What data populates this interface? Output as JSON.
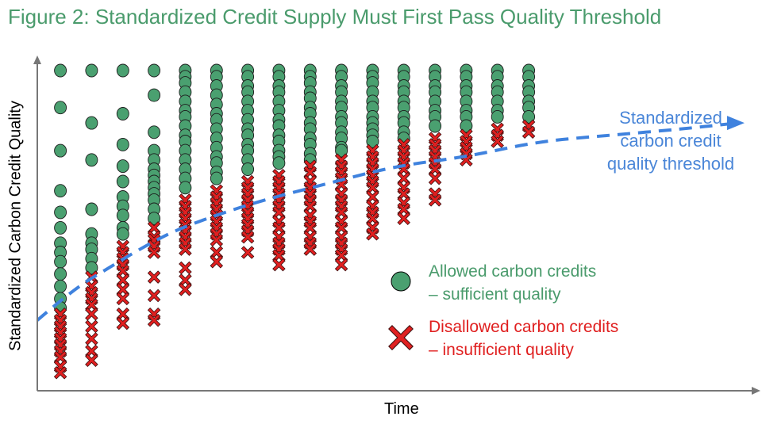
{
  "title": "Figure 2: Standardized Credit Supply Must First Pass Quality Threshold",
  "threshold_label_lines": [
    "Standardized",
    "carbon credit",
    "quality threshold"
  ],
  "legend": {
    "allowed": [
      "Allowed carbon credits",
      "– sufficient quality"
    ],
    "disallowed": [
      "Disallowed carbon credits",
      "– insufficient quality"
    ]
  },
  "colors": {
    "allowed": "#4a9b6c",
    "allowed_fill": "#4aa070",
    "disallowed": "#e02020",
    "threshold": "#3f82de",
    "axis": "#777777",
    "title": "#4a9b6c"
  },
  "chart_data": {
    "type": "scatter",
    "title": "Figure 2: Standardized Credit Supply Must First Pass Quality Threshold",
    "xlabel": "Time",
    "ylabel": "Standardized Carbon Credit Quality",
    "xlim": [
      0,
      1
    ],
    "ylim": [
      0,
      1
    ],
    "grid": false,
    "legend_position": "right",
    "threshold": {
      "name": "Standardized carbon credit quality threshold",
      "x": [
        0.0,
        0.05,
        0.1,
        0.15,
        0.2,
        0.3,
        0.4,
        0.5,
        0.6,
        0.7,
        0.8,
        0.9,
        0.98
      ],
      "y": [
        0.19,
        0.29,
        0.36,
        0.43,
        0.49,
        0.57,
        0.63,
        0.69,
        0.72,
        0.77,
        0.79,
        0.81,
        0.83
      ]
    },
    "columns": [
      {
        "x": 0.03,
        "allowed": [
          1.0,
          0.88,
          0.74,
          0.61,
          0.54,
          0.49,
          0.44,
          0.41,
          0.38,
          0.34,
          0.3,
          0.26,
          0.23
        ],
        "disallowed": [
          0.21,
          0.19,
          0.17,
          0.15,
          0.13,
          0.11,
          0.09,
          0.07,
          0.04,
          0.02
        ]
      },
      {
        "x": 0.12,
        "allowed": [
          1.0,
          0.83,
          0.71,
          0.55,
          0.47,
          0.44,
          0.42,
          0.39,
          0.36
        ],
        "disallowed": [
          0.33,
          0.3,
          0.28,
          0.26,
          0.24,
          0.21,
          0.17,
          0.13,
          0.09,
          0.06
        ]
      },
      {
        "x": 0.21,
        "allowed": [
          1.0,
          0.86,
          0.76,
          0.69,
          0.64,
          0.59,
          0.56,
          0.53,
          0.49,
          0.47
        ],
        "disallowed": [
          0.43,
          0.41,
          0.39,
          0.37,
          0.35,
          0.32,
          0.29,
          0.26,
          0.21,
          0.18
        ]
      },
      {
        "x": 0.3,
        "allowed": [
          1.0,
          0.92,
          0.8,
          0.74,
          0.71,
          0.68,
          0.66,
          0.64,
          0.62,
          0.6,
          0.58,
          0.55,
          0.52
        ],
        "disallowed": [
          0.49,
          0.46,
          0.45,
          0.43,
          0.41,
          0.33,
          0.27,
          0.21,
          0.19
        ]
      },
      {
        "x": 0.39,
        "allowed": [
          1.0,
          0.98,
          0.96,
          0.93,
          0.9,
          0.87,
          0.85,
          0.82,
          0.79,
          0.77,
          0.74,
          0.71,
          0.68,
          0.65,
          0.62
        ],
        "disallowed": [
          0.58,
          0.56,
          0.54,
          0.52,
          0.5,
          0.48,
          0.46,
          0.44,
          0.42,
          0.36,
          0.32,
          0.29
        ]
      },
      {
        "x": 0.48,
        "allowed": [
          1.0,
          0.98,
          0.95,
          0.92,
          0.89,
          0.86,
          0.84,
          0.81,
          0.78,
          0.75,
          0.72,
          0.7,
          0.67,
          0.65
        ],
        "disallowed": [
          0.61,
          0.59,
          0.57,
          0.55,
          0.53,
          0.51,
          0.49,
          0.47,
          0.45,
          0.41,
          0.38
        ]
      },
      {
        "x": 0.57,
        "allowed": [
          1.0,
          0.98,
          0.95,
          0.93,
          0.9,
          0.87,
          0.84,
          0.81,
          0.79,
          0.76,
          0.74,
          0.71,
          0.68
        ],
        "disallowed": [
          0.64,
          0.62,
          0.6,
          0.58,
          0.56,
          0.54,
          0.52,
          0.5,
          0.48,
          0.46,
          0.41
        ]
      },
      {
        "x": 0.66,
        "allowed": [
          1.0,
          0.98,
          0.95,
          0.93,
          0.9,
          0.87,
          0.84,
          0.82,
          0.79,
          0.77,
          0.74,
          0.72,
          0.7
        ],
        "disallowed": [
          0.66,
          0.64,
          0.62,
          0.6,
          0.58,
          0.56,
          0.54,
          0.51,
          0.49,
          0.46,
          0.44,
          0.42,
          0.4,
          0.37
        ]
      },
      {
        "x": 0.75,
        "allowed": [
          1.0,
          0.98,
          0.96,
          0.93,
          0.91,
          0.88,
          0.86,
          0.83,
          0.81,
          0.78,
          0.76,
          0.73,
          0.71
        ],
        "disallowed": [
          0.69,
          0.67,
          0.64,
          0.62,
          0.6,
          0.58,
          0.56,
          0.53,
          0.51,
          0.49,
          0.46,
          0.44,
          0.42
        ]
      },
      {
        "x": 0.84,
        "allowed": [
          1.0,
          0.98,
          0.95,
          0.93,
          0.9,
          0.88,
          0.85,
          0.83,
          0.8,
          0.78,
          0.75,
          0.74
        ],
        "disallowed": [
          0.71,
          0.69,
          0.67,
          0.65,
          0.63,
          0.6,
          0.58,
          0.56,
          0.54,
          0.51,
          0.49,
          0.46,
          0.44,
          0.42,
          0.4,
          0.37
        ]
      },
      {
        "x": 0.93,
        "allowed": [
          1.0,
          0.98,
          0.96,
          0.93,
          0.9,
          0.88,
          0.85,
          0.83,
          0.81,
          0.79,
          0.77
        ],
        "disallowed": [
          0.74,
          0.72,
          0.7,
          0.68,
          0.66,
          0.64,
          0.62,
          0.59,
          0.56,
          0.54,
          0.52,
          0.49,
          0.47
        ]
      },
      {
        "x": 1.02,
        "allowed": [
          1.0,
          0.98,
          0.95,
          0.93,
          0.9,
          0.88,
          0.85,
          0.83,
          0.8,
          0.78
        ],
        "disallowed": [
          0.76,
          0.74,
          0.72,
          0.7,
          0.68,
          0.65,
          0.62,
          0.6,
          0.57,
          0.55,
          0.52
        ]
      },
      {
        "x": 1.11,
        "allowed": [
          1.0,
          0.98,
          0.95,
          0.93,
          0.9,
          0.87,
          0.85,
          0.82
        ],
        "disallowed": [
          0.78,
          0.76,
          0.74,
          0.72,
          0.7,
          0.68,
          0.65,
          0.6,
          0.58
        ]
      },
      {
        "x": 1.2,
        "allowed": [
          1.0,
          0.98,
          0.95,
          0.93,
          0.9,
          0.87,
          0.85,
          0.82
        ],
        "disallowed": [
          0.79,
          0.77,
          0.75,
          0.73,
          0.71
        ]
      },
      {
        "x": 1.29,
        "allowed": [
          1.0,
          0.98,
          0.95,
          0.93,
          0.9,
          0.87,
          0.85
        ],
        "disallowed": [
          0.81,
          0.79,
          0.77
        ]
      },
      {
        "x": 1.38,
        "allowed": [
          1.0,
          0.98,
          0.95,
          0.93,
          0.9,
          0.88,
          0.85
        ],
        "disallowed": [
          0.82,
          0.8
        ]
      }
    ]
  }
}
